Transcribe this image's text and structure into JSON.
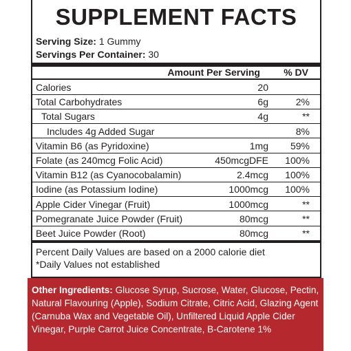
{
  "header": {
    "title": "SUPPLEMENT FACTS"
  },
  "serving": [
    {
      "label": "Serving Size:",
      "value": "1 Gummy"
    },
    {
      "label": "Servings Per Container:",
      "value": "30"
    }
  ],
  "table": {
    "columns": [
      "Amount Per Serving",
      "% DV"
    ],
    "rows": [
      {
        "name": "Calories",
        "amount": "20",
        "dv": null,
        "level": 0
      },
      {
        "name": "Total Carbohydrates",
        "amount": "6g",
        "dv": "2%",
        "level": 0
      },
      {
        "name": "Total Sugars",
        "amount": "4g",
        "dv": "**",
        "level": 1
      },
      {
        "name": "Includes 4g Added Sugar",
        "amount": null,
        "dv": "8%",
        "level": 2
      },
      {
        "name": "Vitamin B6 (as Pyridoxine)",
        "amount": "1mg",
        "dv": "59%",
        "level": 0
      },
      {
        "name": "Folate (as 240mcg Folic Acid)",
        "amount": "450mcgDFE",
        "dv": "100%",
        "level": 0
      },
      {
        "name": "Vitamin B12 (as Cyanocobalamin)",
        "amount": "2.4mcg",
        "dv": "100%",
        "level": 0
      },
      {
        "name": "Iodine (as Potassium Iodine)",
        "amount": "1000mcg",
        "dv": "100%",
        "level": 0
      },
      {
        "name": "Apple Cider Vinegar (Fruit)",
        "amount": "1000mcg",
        "dv": "**",
        "level": 0
      },
      {
        "name": "Pomegranate Juice Powder (Fruit)",
        "amount": "80mcg",
        "dv": "**",
        "level": 0
      },
      {
        "name": "Beet Juice Powder (Root)",
        "amount": "80mcg",
        "dv": "**",
        "level": 0
      }
    ]
  },
  "footnotes": [
    "Percent Daily Values are based on a 2000 calorie diet",
    "*Daily Values not established"
  ],
  "other_ingredients": {
    "label": "Other Ingredients:",
    "text": "Glucose Syrup, Sucrose, Water, Glucose, Pectin, Natural Flavouring (Apple), Sodium Citrate, Citric Acid, Glazing Agent (Carnuba Wax and Vegetable Oil), Unfiltered Liquid Apple Cider Vinegar, Purple Carrot Juice Concentrate, B-Carotene 1%"
  }
}
